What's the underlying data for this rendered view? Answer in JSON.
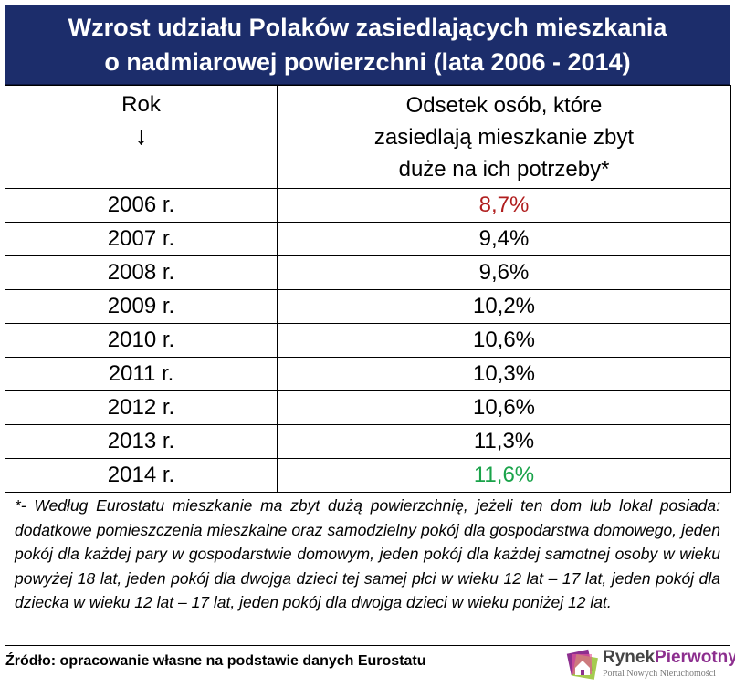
{
  "title": {
    "line1": "Wzrost udziału Polaków zasiedlających mieszkania",
    "line2": "o nadmiarowej powierzchni (lata 2006 - 2014)"
  },
  "table": {
    "header_year": "Rok",
    "header_arrow": "↓",
    "header_value_line1": "Odsetek osób, które",
    "header_value_line2": "zasiedlają mieszkanie zbyt",
    "header_value_line3": "duże na ich potrzeby*",
    "rows": [
      {
        "year": "2006 r.",
        "value": "8,7%"
      },
      {
        "year": "2007 r.",
        "value": "9,4%"
      },
      {
        "year": "2008 r.",
        "value": "9,6%"
      },
      {
        "year": "2009 r.",
        "value": "10,2%"
      },
      {
        "year": "2010 r.",
        "value": "10,6%"
      },
      {
        "year": "2011 r.",
        "value": "10,3%"
      },
      {
        "year": "2012 r.",
        "value": "10,6%"
      },
      {
        "year": "2013 r.",
        "value": "11,3%"
      },
      {
        "year": "2014 r.",
        "value": "11,6%"
      }
    ]
  },
  "note": "*- Według Eurostatu mieszkanie ma zbyt dużą powierzchnię, jeżeli ten dom lub lokal posiada: dodatkowe pomieszczenia mieszkalne oraz samodzielny pokój dla gospodarstwa domowego, jeden pokój dla każdej pary w gospodarstwie domowym, jeden pokój dla każdej samotnej osoby w wieku powyżej 18 lat, jeden pokój dla dwojga dzieci tej samej płci w wieku 12 lat – 17 lat, jeden pokój dla dziecka w wieku 12 lat – 17 lat, jeden pokój dla dwojga dzieci w wieku poniżej 12 lat.",
  "source": "Źródło: opracowanie własne na podstawie danych Eurostatu",
  "logo": {
    "name_part1": "Rynek",
    "name_part2": "Pierwotny",
    "subtitle": "Portal Nowych Nieruchomości"
  },
  "colors": {
    "title_bg": "#1c2d6b",
    "lowest_value": "#b01e1e",
    "highest_value": "#1aa34a"
  }
}
